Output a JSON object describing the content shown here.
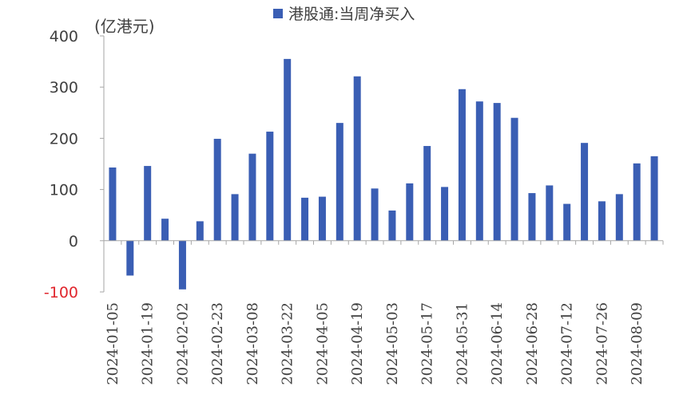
{
  "chart_data": {
    "type": "bar",
    "title": "",
    "unit_label": "(亿港元)",
    "legend": {
      "label": "港股通:当周净买入",
      "position": "top-center"
    },
    "ylim": [
      -100,
      400
    ],
    "yticks": [
      -100,
      0,
      100,
      200,
      300,
      400
    ],
    "ytick_labels": [
      "-100",
      "0",
      "100",
      "200",
      "300",
      "400"
    ],
    "negative_tick_color": "#e0262d",
    "bar_color": "#3a5eb4",
    "grid": false,
    "xtick_labels": [
      "2024-01-05",
      "2024-01-19",
      "2024-02-02",
      "2024-02-23",
      "2024-03-08",
      "2024-03-22",
      "2024-04-05",
      "2024-04-19",
      "2024-05-03",
      "2024-05-17",
      "2024-05-31",
      "2024-06-14",
      "2024-06-28",
      "2024-07-12",
      "2024-07-26",
      "2024-08-09"
    ],
    "series": [
      {
        "name": "港股通:当周净买入",
        "values": [
          143,
          -68,
          146,
          43,
          -95,
          38,
          199,
          91,
          170,
          213,
          355,
          84,
          86,
          230,
          321,
          102,
          59,
          112,
          185,
          105,
          296,
          272,
          269,
          240,
          93,
          108,
          72,
          191,
          77,
          91,
          151,
          165
        ]
      }
    ]
  }
}
